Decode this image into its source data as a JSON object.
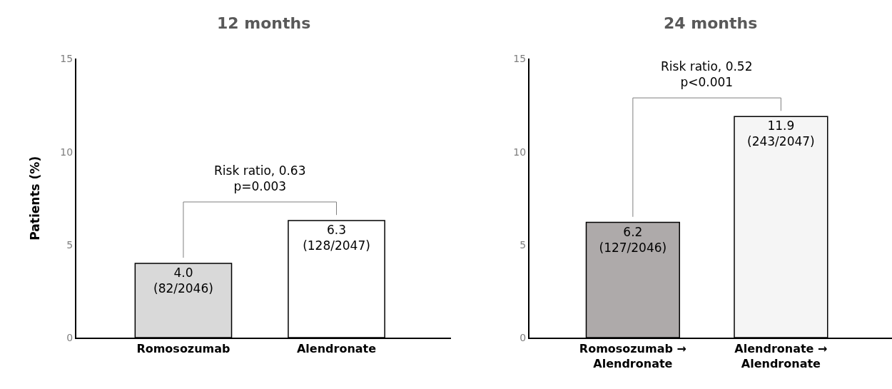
{
  "chart_data": [
    {
      "type": "bar",
      "title": "12 months",
      "ylabel": "Patients (%)",
      "categories": [
        "Romosozumab",
        "Alendronate"
      ],
      "values": [
        4.0,
        6.3
      ],
      "colors": [
        "#d9d9d9",
        "#ffffff"
      ],
      "value_labels": [
        "4.0\n(82/2046)",
        "6.3\n(128/2047)"
      ],
      "ylim": [
        0,
        15
      ],
      "yticks": [
        0,
        5,
        10,
        15
      ],
      "grid": false,
      "annotations": [
        "Risk ratio, 0.63\np=0.003"
      ]
    },
    {
      "type": "bar",
      "title": "24 months",
      "categories": [
        "Romosozumab →\nAlendronate",
        "Alendronate →\nAlendronate"
      ],
      "values": [
        6.2,
        11.9
      ],
      "colors": [
        "#aeaaaa",
        "#f5f5f5"
      ],
      "value_labels": [
        "6.2\n(127/2046)",
        "11.9\n(243/2047)"
      ],
      "ylim": [
        0,
        15
      ],
      "yticks": [
        0,
        5,
        10,
        15
      ],
      "grid": false,
      "annotations": [
        "Risk ratio, 0.52\np<0.001"
      ]
    }
  ]
}
